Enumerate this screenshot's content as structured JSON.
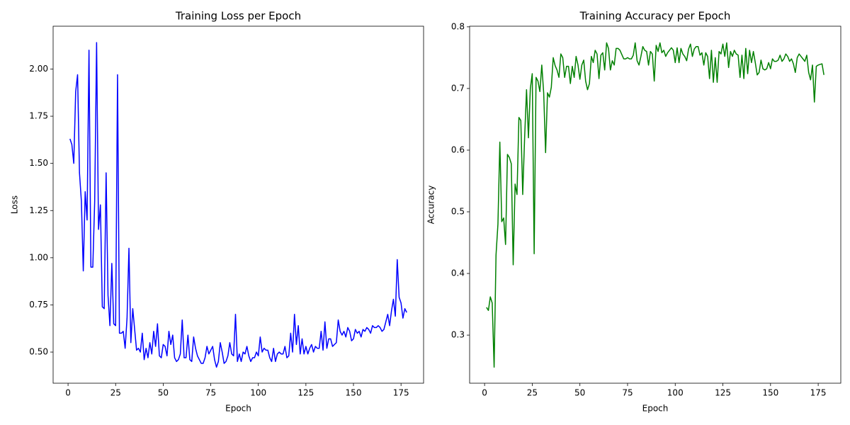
{
  "chart_data": [
    {
      "type": "line",
      "title": "Training Loss per Epoch",
      "xlabel": "Epoch",
      "ylabel": "Loss",
      "color": "#0000ff",
      "x": [
        1,
        2,
        3,
        4,
        5,
        6,
        7,
        8,
        9,
        10,
        11,
        12,
        13,
        14,
        15,
        16,
        17,
        18,
        19,
        20,
        21,
        22,
        23,
        24,
        25,
        26,
        27,
        28,
        29,
        30,
        31,
        32,
        33,
        34,
        35,
        36,
        37,
        38,
        39,
        40,
        41,
        42,
        43,
        44,
        45,
        46,
        47,
        48,
        49,
        50,
        51,
        52,
        53,
        54,
        55,
        56,
        57,
        58,
        59,
        60,
        61,
        62,
        63,
        64,
        65,
        66,
        67,
        68,
        69,
        70,
        71,
        72,
        73,
        74,
        75,
        76,
        77,
        78,
        79,
        80,
        81,
        82,
        83,
        84,
        85,
        86,
        87,
        88,
        89,
        90,
        91,
        92,
        93,
        94,
        95,
        96,
        97,
        98,
        99,
        100,
        101,
        102,
        103,
        104,
        105,
        106,
        107,
        108,
        109,
        110,
        111,
        112,
        113,
        114,
        115,
        116,
        117,
        118,
        119,
        120,
        121,
        122,
        123,
        124,
        125,
        126,
        127,
        128,
        129,
        130,
        131,
        132,
        133,
        134,
        135,
        136,
        137,
        138,
        139,
        140,
        141,
        142,
        143,
        144,
        145,
        146,
        147,
        148,
        149,
        150,
        151,
        152,
        153,
        154,
        155,
        156,
        157,
        158,
        159,
        160,
        161,
        162,
        163,
        164,
        165,
        166,
        167,
        168,
        169,
        170,
        171,
        172,
        173,
        174,
        175,
        176,
        177,
        178
      ],
      "values": [
        1.63,
        1.6,
        1.5,
        1.88,
        1.97,
        1.45,
        1.3,
        0.93,
        1.35,
        1.2,
        2.1,
        0.95,
        0.95,
        1.3,
        2.14,
        1.15,
        1.28,
        0.74,
        0.73,
        1.45,
        0.8,
        0.64,
        0.97,
        0.65,
        0.64,
        1.97,
        0.6,
        0.6,
        0.61,
        0.52,
        0.68,
        1.05,
        0.55,
        0.73,
        0.62,
        0.51,
        0.52,
        0.5,
        0.6,
        0.46,
        0.52,
        0.47,
        0.55,
        0.49,
        0.61,
        0.53,
        0.65,
        0.48,
        0.47,
        0.54,
        0.53,
        0.48,
        0.61,
        0.54,
        0.59,
        0.47,
        0.45,
        0.46,
        0.49,
        0.67,
        0.47,
        0.47,
        0.59,
        0.46,
        0.45,
        0.58,
        0.52,
        0.48,
        0.46,
        0.44,
        0.44,
        0.47,
        0.53,
        0.49,
        0.51,
        0.53,
        0.46,
        0.42,
        0.45,
        0.55,
        0.5,
        0.44,
        0.45,
        0.48,
        0.55,
        0.49,
        0.48,
        0.7,
        0.45,
        0.49,
        0.45,
        0.5,
        0.49,
        0.53,
        0.48,
        0.45,
        0.47,
        0.47,
        0.5,
        0.48,
        0.58,
        0.5,
        0.52,
        0.51,
        0.51,
        0.47,
        0.45,
        0.52,
        0.45,
        0.49,
        0.5,
        0.49,
        0.49,
        0.53,
        0.47,
        0.48,
        0.6,
        0.5,
        0.7,
        0.54,
        0.64,
        0.49,
        0.57,
        0.49,
        0.53,
        0.49,
        0.52,
        0.54,
        0.5,
        0.53,
        0.52,
        0.52,
        0.61,
        0.51,
        0.66,
        0.52,
        0.57,
        0.57,
        0.53,
        0.54,
        0.55,
        0.67,
        0.61,
        0.59,
        0.61,
        0.58,
        0.63,
        0.61,
        0.56,
        0.57,
        0.62,
        0.6,
        0.61,
        0.58,
        0.62,
        0.61,
        0.63,
        0.62,
        0.6,
        0.64,
        0.63,
        0.63,
        0.64,
        0.63,
        0.61,
        0.62,
        0.66,
        0.7,
        0.64,
        0.72,
        0.78,
        0.69,
        0.99,
        0.79,
        0.76,
        0.68,
        0.73,
        0.71
      ],
      "xlim": [
        -7.85,
        186.85
      ],
      "xticks": [
        0,
        25,
        50,
        75,
        100,
        125,
        150,
        175
      ],
      "ylim": [
        0.335,
        2.227
      ],
      "yticks": [
        {
          "value": 0.5,
          "label": "0.50"
        },
        {
          "value": 0.75,
          "label": "0.75"
        },
        {
          "value": 1.0,
          "label": "1.00"
        },
        {
          "value": 1.25,
          "label": "1.25"
        },
        {
          "value": 1.5,
          "label": "1.50"
        },
        {
          "value": 1.75,
          "label": "1.75"
        },
        {
          "value": 2.0,
          "label": "2.00"
        }
      ]
    },
    {
      "type": "line",
      "title": "Training Accuracy per Epoch",
      "xlabel": "Epoch",
      "ylabel": "Accuracy",
      "color": "#008000",
      "x": [
        1,
        2,
        3,
        4,
        5,
        6,
        7,
        8,
        9,
        10,
        11,
        12,
        13,
        14,
        15,
        16,
        17,
        18,
        19,
        20,
        21,
        22,
        23,
        24,
        25,
        26,
        27,
        28,
        29,
        30,
        31,
        32,
        33,
        34,
        35,
        36,
        37,
        38,
        39,
        40,
        41,
        42,
        43,
        44,
        45,
        46,
        47,
        48,
        49,
        50,
        51,
        52,
        53,
        54,
        55,
        56,
        57,
        58,
        59,
        60,
        61,
        62,
        63,
        64,
        65,
        66,
        67,
        68,
        69,
        70,
        71,
        72,
        73,
        74,
        75,
        76,
        77,
        78,
        79,
        80,
        81,
        82,
        83,
        84,
        85,
        86,
        87,
        88,
        89,
        90,
        91,
        92,
        93,
        94,
        95,
        96,
        97,
        98,
        99,
        100,
        101,
        102,
        103,
        104,
        105,
        106,
        107,
        108,
        109,
        110,
        111,
        112,
        113,
        114,
        115,
        116,
        117,
        118,
        119,
        120,
        121,
        122,
        123,
        124,
        125,
        126,
        127,
        128,
        129,
        130,
        131,
        132,
        133,
        134,
        135,
        136,
        137,
        138,
        139,
        140,
        141,
        142,
        143,
        144,
        145,
        146,
        147,
        148,
        149,
        150,
        151,
        152,
        153,
        154,
        155,
        156,
        157,
        158,
        159,
        160,
        161,
        162,
        163,
        164,
        165,
        166,
        167,
        168,
        169,
        170,
        171,
        172,
        173,
        174,
        175,
        176,
        177,
        178
      ],
      "values": [
        0.345,
        0.34,
        0.362,
        0.352,
        0.248,
        0.43,
        0.48,
        0.613,
        0.484,
        0.49,
        0.447,
        0.593,
        0.588,
        0.578,
        0.414,
        0.545,
        0.528,
        0.653,
        0.648,
        0.528,
        0.62,
        0.698,
        0.62,
        0.7,
        0.724,
        0.432,
        0.718,
        0.712,
        0.695,
        0.738,
        0.693,
        0.596,
        0.693,
        0.686,
        0.702,
        0.75,
        0.737,
        0.73,
        0.718,
        0.756,
        0.75,
        0.718,
        0.736,
        0.736,
        0.708,
        0.736,
        0.718,
        0.752,
        0.738,
        0.715,
        0.738,
        0.746,
        0.712,
        0.698,
        0.708,
        0.752,
        0.742,
        0.762,
        0.756,
        0.716,
        0.754,
        0.758,
        0.73,
        0.774,
        0.765,
        0.73,
        0.745,
        0.738,
        0.765,
        0.765,
        0.762,
        0.755,
        0.748,
        0.748,
        0.75,
        0.748,
        0.748,
        0.754,
        0.774,
        0.745,
        0.738,
        0.752,
        0.768,
        0.762,
        0.76,
        0.738,
        0.76,
        0.756,
        0.712,
        0.77,
        0.76,
        0.774,
        0.758,
        0.762,
        0.752,
        0.758,
        0.762,
        0.766,
        0.762,
        0.742,
        0.766,
        0.742,
        0.765,
        0.756,
        0.752,
        0.745,
        0.764,
        0.772,
        0.752,
        0.764,
        0.768,
        0.768,
        0.754,
        0.758,
        0.738,
        0.758,
        0.752,
        0.716,
        0.762,
        0.71,
        0.75,
        0.71,
        0.76,
        0.756,
        0.772,
        0.752,
        0.774,
        0.734,
        0.76,
        0.752,
        0.762,
        0.756,
        0.754,
        0.718,
        0.754,
        0.716,
        0.765,
        0.724,
        0.762,
        0.742,
        0.76,
        0.742,
        0.722,
        0.726,
        0.746,
        0.732,
        0.73,
        0.732,
        0.742,
        0.732,
        0.748,
        0.744,
        0.744,
        0.746,
        0.754,
        0.744,
        0.748,
        0.756,
        0.752,
        0.744,
        0.748,
        0.74,
        0.726,
        0.75,
        0.756,
        0.752,
        0.748,
        0.744,
        0.754,
        0.726,
        0.714,
        0.738,
        0.678,
        0.736,
        0.738,
        0.739,
        0.74,
        0.722
      ],
      "xlim": [
        -7.85,
        186.85
      ],
      "xticks": [
        0,
        25,
        50,
        75,
        100,
        125,
        150,
        175
      ],
      "ylim": [
        0.222,
        0.801
      ],
      "yticks": [
        0.3,
        0.4,
        0.5,
        0.6,
        0.7,
        0.8
      ]
    }
  ]
}
